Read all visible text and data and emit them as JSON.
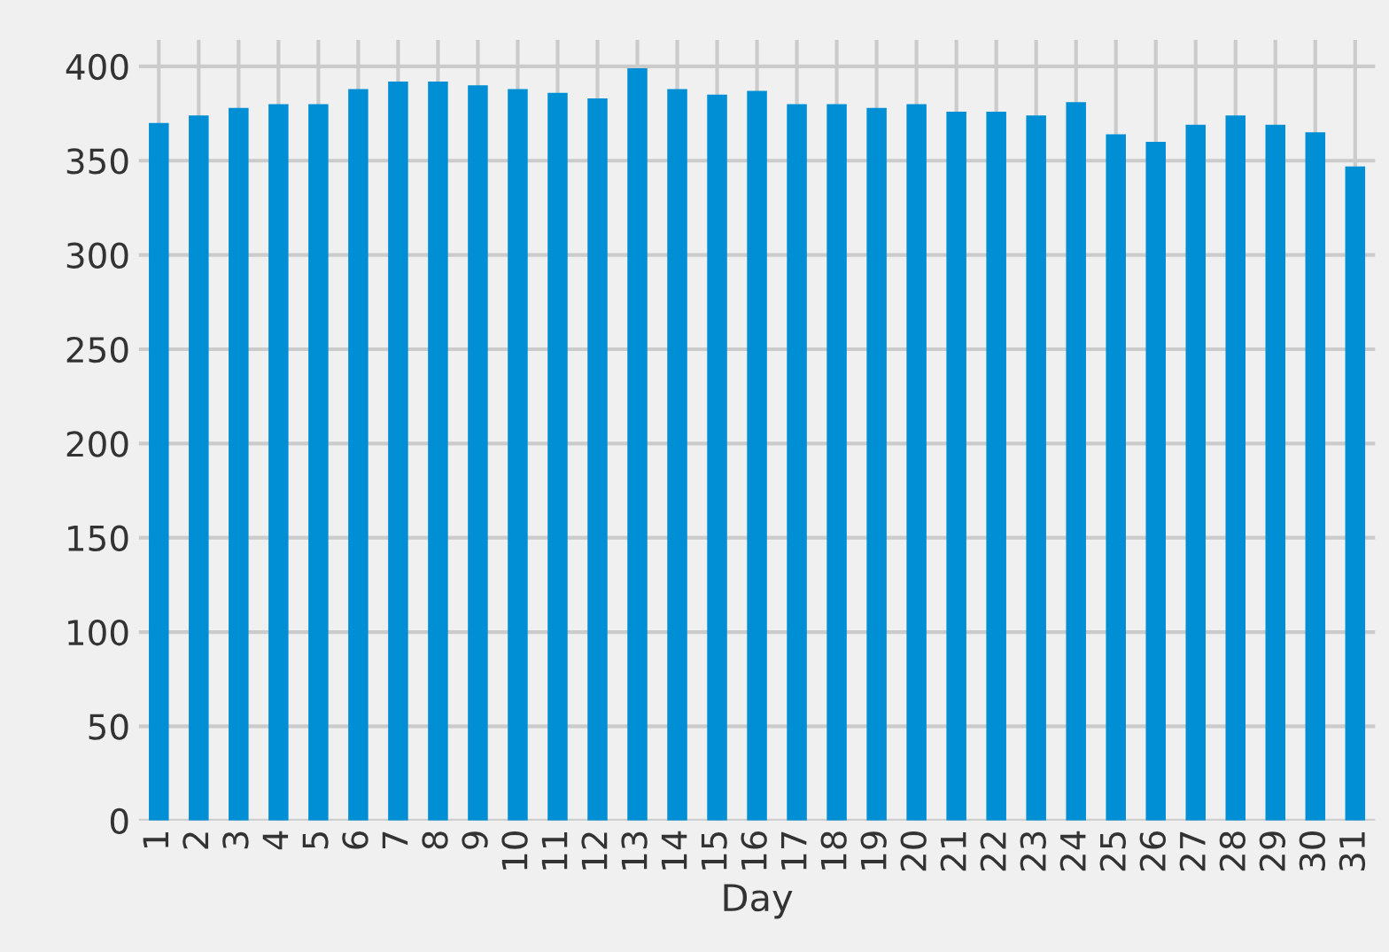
{
  "chart_data": {
    "type": "bar",
    "xlabel": "Day",
    "categories": [
      "1",
      "2",
      "3",
      "4",
      "5",
      "6",
      "7",
      "8",
      "9",
      "10",
      "11",
      "12",
      "13",
      "14",
      "15",
      "16",
      "17",
      "18",
      "19",
      "20",
      "21",
      "22",
      "23",
      "24",
      "25",
      "26",
      "27",
      "28",
      "29",
      "30",
      "31"
    ],
    "values": [
      370,
      374,
      378,
      380,
      380,
      388,
      392,
      392,
      390,
      388,
      386,
      383,
      399,
      388,
      385,
      387,
      380,
      380,
      378,
      380,
      376,
      376,
      374,
      381,
      364,
      360,
      369,
      374,
      369,
      365,
      347
    ],
    "color": "#008fd5",
    "ylim": [
      0,
      414
    ],
    "yticks": [
      0,
      50,
      100,
      150,
      200,
      250,
      300,
      350,
      400
    ],
    "grid": true
  }
}
